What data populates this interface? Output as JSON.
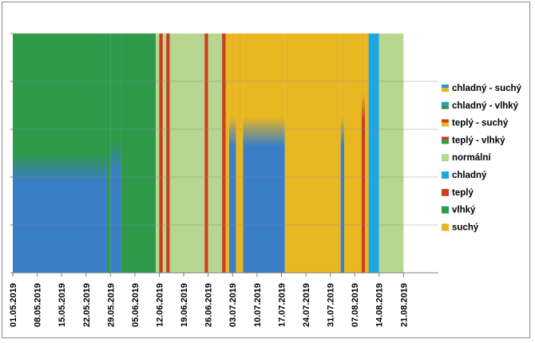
{
  "chart_data": {
    "type": "area",
    "title": "",
    "xlabel": "",
    "ylabel": "",
    "x_range": [
      "01.05.2019",
      "31.08.2019"
    ],
    "y_levels": 5,
    "grid": true,
    "legend_position": "right",
    "x_tick_labels": [
      "01.05.2019",
      "08.05.2019",
      "15.05.2019",
      "22.05.2019",
      "29.05.2019",
      "05.06.2019",
      "12.06.2019",
      "19.06.2019",
      "26.06.2019",
      "03.07.2019",
      "10.07.2019",
      "17.07.2019",
      "24.07.2019",
      "31.07.2019",
      "07.08.2019",
      "14.08.2019",
      "21.08.2019"
    ],
    "legend": [
      {
        "label": "chladný - suchý",
        "colors": [
          "#1f9ad6",
          "#e8b620"
        ]
      },
      {
        "label": "chladný - vlhký",
        "colors": [
          "#1f9ad6",
          "#2e9a4a"
        ]
      },
      {
        "label": "teplý - suchý",
        "colors": [
          "#c8401e",
          "#e8b620"
        ]
      },
      {
        "label": "teplý - vlhký",
        "colors": [
          "#c8401e",
          "#2e9a4a"
        ]
      },
      {
        "label": "normální",
        "colors": [
          "#b7d68f"
        ]
      },
      {
        "label": "chladný",
        "colors": [
          "#1fa5e0"
        ]
      },
      {
        "label": "teplý",
        "colors": [
          "#c8401e"
        ]
      },
      {
        "label": "vlhký",
        "colors": [
          "#2e9a4a"
        ]
      },
      {
        "label": "suchý",
        "colors": [
          "#e8b620"
        ]
      }
    ],
    "colors": {
      "vlhky": "#2e9a4a",
      "normalni": "#b7d68f",
      "teply": "#c8401e",
      "chladny": "#1fa5e0",
      "suchy": "#e8b620",
      "mix_blue": "#3a7fc6"
    },
    "segments": [
      {
        "start": "01.05.2019",
        "end": "28.05.2019",
        "category": "vlhký",
        "blend": {
          "color": "mix_blue",
          "from": 0.0,
          "to": 0.5
        }
      },
      {
        "start": "28.05.2019",
        "end": "29.05.2019",
        "category": "vlhký"
      },
      {
        "start": "29.05.2019",
        "end": "01.06.2019",
        "category": "vlhký",
        "blend": {
          "color": "mix_blue",
          "from": 0.0,
          "to": 0.55
        }
      },
      {
        "start": "01.06.2019",
        "end": "11.06.2019",
        "category": "vlhký"
      },
      {
        "start": "11.06.2019",
        "end": "12.06.2019",
        "category": "normální"
      },
      {
        "start": "12.06.2019",
        "end": "13.06.2019",
        "category": "teplý"
      },
      {
        "start": "13.06.2019",
        "end": "14.06.2019",
        "category": "normální"
      },
      {
        "start": "14.06.2019",
        "end": "15.06.2019",
        "category": "teplý"
      },
      {
        "start": "15.06.2019",
        "end": "25.06.2019",
        "category": "normální"
      },
      {
        "start": "25.06.2019",
        "end": "26.06.2019",
        "category": "teplý"
      },
      {
        "start": "26.06.2019",
        "end": "30.06.2019",
        "category": "normální"
      },
      {
        "start": "30.06.2019",
        "end": "01.07.2019",
        "category": "teplý"
      },
      {
        "start": "01.07.2019",
        "end": "02.07.2019",
        "category": "suchý"
      },
      {
        "start": "02.07.2019",
        "end": "04.07.2019",
        "category": "suchý",
        "blend": {
          "color": "mix_blue",
          "from": 0.0,
          "to": 0.65
        }
      },
      {
        "start": "04.07.2019",
        "end": "06.07.2019",
        "category": "suchý"
      },
      {
        "start": "06.07.2019",
        "end": "18.07.2019",
        "category": "suchý",
        "blend": {
          "color": "mix_blue",
          "from": 0.0,
          "to": 0.65
        }
      },
      {
        "start": "18.07.2019",
        "end": "03.08.2019",
        "category": "suchý"
      },
      {
        "start": "03.08.2019",
        "end": "04.08.2019",
        "category": "suchý",
        "blend": {
          "color": "mix_blue",
          "from": 0.0,
          "to": 0.65
        }
      },
      {
        "start": "04.08.2019",
        "end": "09.08.2019",
        "category": "suchý"
      },
      {
        "start": "09.08.2019",
        "end": "10.08.2019",
        "category": "suchý",
        "blend": {
          "color": "teply",
          "from": 0.0,
          "to": 0.75
        }
      },
      {
        "start": "10.08.2019",
        "end": "11.08.2019",
        "category": "suchý"
      },
      {
        "start": "11.08.2019",
        "end": "14.08.2019",
        "category": "chladný"
      },
      {
        "start": "14.08.2019",
        "end": "21.08.2019",
        "category": "normální"
      }
    ]
  }
}
